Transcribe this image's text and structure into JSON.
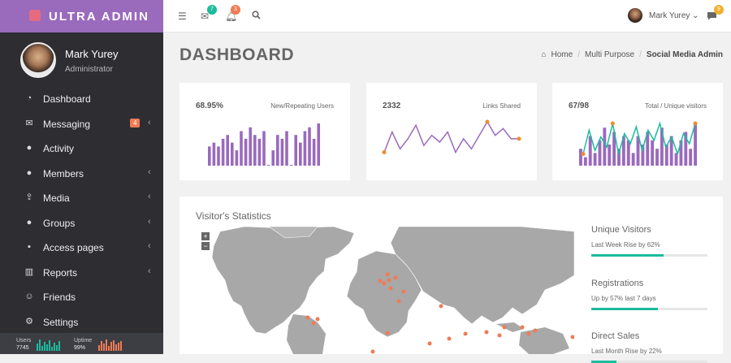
{
  "brand": {
    "name": "ULTRA ADMIN"
  },
  "profile": {
    "name": "Mark Yurey",
    "role": "Administrator"
  },
  "sidebar": {
    "items": [
      {
        "label": "Dashboard",
        "icon": "dashboard-icon",
        "glyph": "◔",
        "chevron": false
      },
      {
        "label": "Messaging",
        "icon": "envelope-icon",
        "glyph": "✉",
        "chevron": true,
        "badge": "4"
      },
      {
        "label": "Activity",
        "icon": "chat-icon",
        "glyph": "●",
        "chevron": false
      },
      {
        "label": "Members",
        "icon": "user-icon",
        "glyph": "●",
        "chevron": true
      },
      {
        "label": "Media",
        "icon": "upload-icon",
        "glyph": "⇪",
        "chevron": true
      },
      {
        "label": "Groups",
        "icon": "users-icon",
        "glyph": "●",
        "chevron": true
      },
      {
        "label": "Access pages",
        "icon": "lock-icon",
        "glyph": "▪",
        "chevron": true
      },
      {
        "label": "Reports",
        "icon": "bar-chart-icon",
        "glyph": "▥",
        "chevron": true
      },
      {
        "label": "Friends",
        "icon": "smile-icon",
        "glyph": "☺",
        "chevron": false
      },
      {
        "label": "Settings",
        "icon": "gears-icon",
        "glyph": "⚙",
        "chevron": false
      }
    ],
    "footer": {
      "users_label": "Users",
      "users_value": "7745",
      "uptime_label": "Uptime",
      "uptime_value": "99%"
    }
  },
  "topbar": {
    "mail_badge": "7",
    "bell_badge": "3",
    "user_name": "Mark Yurey",
    "chat_badge": "9"
  },
  "page": {
    "title": "DASHBOARD",
    "breadcrumb": [
      "Home",
      "Multi Purpose",
      "Social Media Admin"
    ]
  },
  "cards": [
    {
      "value": "68.95%",
      "label": "New/Repeating Users",
      "bars": [
        5,
        6,
        5,
        7,
        8,
        6,
        4,
        9,
        7,
        10,
        8,
        7,
        9,
        0,
        4,
        8,
        7,
        9,
        0,
        8,
        6,
        9,
        10,
        7,
        11
      ],
      "color": "#9a6abd"
    },
    {
      "value": "2332",
      "label": "Links Shared",
      "line": [
        3,
        9,
        4,
        7,
        11,
        5,
        8,
        6,
        9,
        3,
        7,
        4,
        8,
        12,
        8,
        10,
        7,
        7
      ],
      "color": "#9a6abd",
      "dot_color": "#f08c2b"
    },
    {
      "value": "67/98",
      "label": "Total / Unique visitors",
      "bars": [
        4,
        2,
        7,
        3,
        6,
        9,
        5,
        8,
        4,
        7,
        6,
        3,
        7,
        5,
        8,
        6,
        4,
        9,
        5,
        7,
        3,
        6,
        8,
        4,
        10
      ],
      "line": [
        3,
        10,
        4,
        8,
        5,
        12,
        3,
        9,
        6,
        11,
        4,
        10,
        7,
        12,
        5,
        8,
        3,
        9,
        6,
        12
      ],
      "bar_color": "#9a6abd",
      "line_color": "#1abc9c",
      "dot_color": "#f08c2b"
    }
  ],
  "stats": {
    "title": "Visitor's Statistics",
    "metrics": [
      {
        "title": "Unique Visitors",
        "sub": "Last Week Rise by 62%",
        "fill": 0.62
      },
      {
        "title": "Registrations",
        "sub": "Up by 57% last 7 days",
        "fill": 0.57
      },
      {
        "title": "Direct Sales",
        "sub": "Last Month Rise by 22%",
        "fill": 0.22
      }
    ]
  },
  "colors": {
    "accent": "#9a6abd",
    "sidebar": "#2d2d32",
    "teal": "#1abc9c",
    "orange": "#f07b54"
  },
  "map": {
    "zoom_in": "+",
    "zoom_out": "−"
  }
}
